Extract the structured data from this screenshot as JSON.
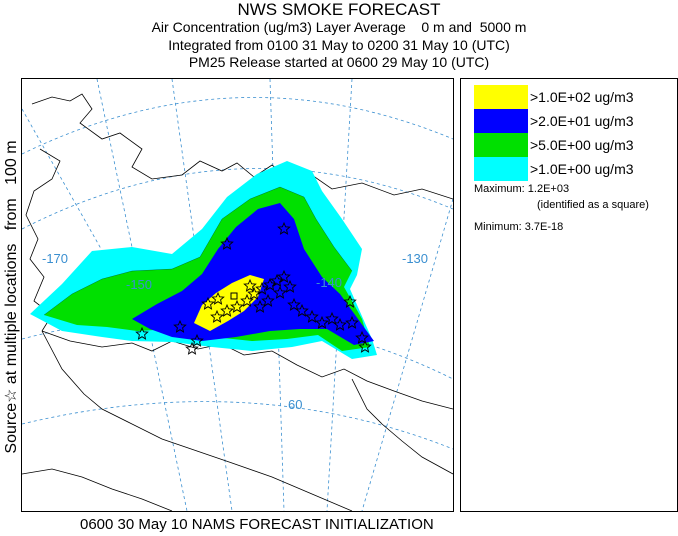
{
  "header": {
    "title": "NWS SMOKE FORECAST",
    "line2": "Air Concentration (ug/m3) Layer Average    0 m and  5000 m",
    "line3": "Integrated from 0100 31 May to 0200 31 May 10 (UTC)",
    "line4": "PM25 Release started at 0600 29 May 10 (UTC)"
  },
  "side_label": "Source☆ at multiple locations   from   100 m",
  "legend": {
    "items": [
      {
        "label": ">1.0E+02 ug/m3",
        "color": "#ffff00"
      },
      {
        "label": ">2.0E+01 ug/m3",
        "color": "#0000ff"
      },
      {
        "label": ">5.0E+00 ug/m3",
        "color": "#00e000"
      },
      {
        "label": ">1.0E+00 ug/m3",
        "color": "#00ffff"
      }
    ],
    "maximum": "Maximum: 1.2E+03",
    "maximum_note": "(identified as a square)",
    "minimum": "Minimum: 3.7E-18"
  },
  "map": {
    "graticule_labels": {
      "lon_170": "-170",
      "lon_150": "-150",
      "lon_140": "-140",
      "lon_130": "-130",
      "lat_60": "60"
    },
    "coast_color": "#000000",
    "graticule_color": "#3a8fd0",
    "source_marker": "star-icon"
  },
  "footer": "0600 30 May 10 NAMS FORECAST INITIALIZATION"
}
